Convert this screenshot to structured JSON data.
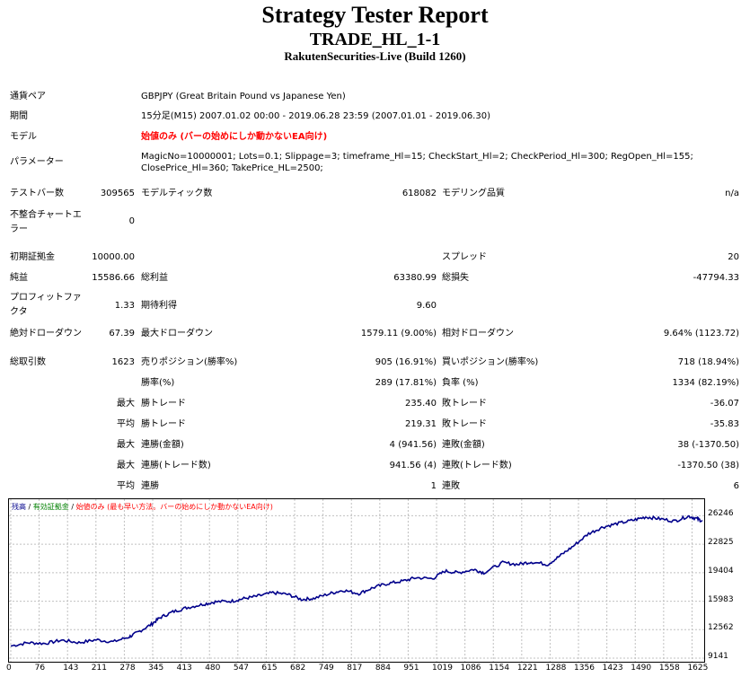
{
  "header": {
    "title": "Strategy Tester Report",
    "subtitle": "TRADE_HL_1-1",
    "build": "RakutenSecurities-Live (Build 1260)"
  },
  "info": {
    "symbol_label": "通貨ペア",
    "symbol_value": "GBPJPY (Great Britain Pound vs Japanese Yen)",
    "period_label": "期間",
    "period_value": "15分足(M15) 2007.01.02 00:00 - 2019.06.28 23:59 (2007.01.01 - 2019.06.30)",
    "model_label": "モデル",
    "model_value": "始値のみ (バーの始めにしか動かないEA向け)",
    "params_label": "パラメーター",
    "params_line1": "MagicNo=10000001; Lots=0.1; Slippage=3; timeframe_Hl=15; CheckStart_Hl=2; CheckPeriod_Hl=300; RegOpen_Hl=155;",
    "params_line2": "ClosePrice_Hl=360; TakePrice_HL=2500;"
  },
  "stats": {
    "bars_label": "テストバー数",
    "bars_value": "309565",
    "ticks_label": "モデルティック数",
    "ticks_value": "618082",
    "quality_label": "モデリング品質",
    "quality_value": "n/a",
    "mismatch_label_1": "不整合チャートエ",
    "mismatch_label_2": "ラー",
    "mismatch_value": "0",
    "deposit_label": "初期証拠金",
    "deposit_value": "10000.00",
    "spread_label": "スプレッド",
    "spread_value": "20",
    "net_label": "純益",
    "net_value": "15586.66",
    "gross_profit_label": "総利益",
    "gross_profit_value": "63380.99",
    "gross_loss_label": "総損失",
    "gross_loss_value": "-47794.33",
    "pf_label_1": "プロフィットファ",
    "pf_label_2": "クタ",
    "pf_value": "1.33",
    "expected_label": "期待利得",
    "expected_value": "9.60",
    "abs_dd_label": "絶対ドローダウン",
    "abs_dd_value": "67.39",
    "max_dd_label": "最大ドローダウン",
    "max_dd_value": "1579.11 (9.00%)",
    "rel_dd_label": "相対ドローダウン",
    "rel_dd_value": "9.64% (1123.72)",
    "total_label": "総取引数",
    "total_value": "1623",
    "short_label": "売りポジション(勝率%)",
    "short_value": "905 (16.91%)",
    "long_label": "買いポジション(勝率%)",
    "long_value": "718 (18.94%)",
    "win_label": "勝率(%)",
    "win_value": "289 (17.81%)",
    "loss_label": "負率 (%)",
    "loss_value": "1334 (82.19%)",
    "q_max": "最大",
    "q_avg": "平均",
    "max_win_label": "勝トレード",
    "max_win_value": "235.40",
    "max_loss_label": "敗トレード",
    "max_loss_value": "-36.07",
    "avg_win_label": "勝トレード",
    "avg_win_value": "219.31",
    "avg_loss_label": "敗トレード",
    "avg_loss_value": "-35.83",
    "cons_win_amt_label": "連勝(金額)",
    "cons_win_amt_value": "4 (941.56)",
    "cons_loss_amt_label": "連敗(金額)",
    "cons_loss_amt_value": "38 (-1370.50)",
    "cons_win_cnt_label": "連勝(トレード数)",
    "cons_win_cnt_value": "941.56 (4)",
    "cons_loss_cnt_label": "連敗(トレード数)",
    "cons_loss_cnt_value": "-1370.50 (38)",
    "avg_cons_win_label": "連勝",
    "avg_cons_win_value": "1",
    "avg_cons_loss_label": "連敗",
    "avg_cons_loss_value": "6"
  },
  "chart_data": {
    "type": "line",
    "legend": {
      "balance": "残高",
      "sep1": " / ",
      "equity": "有効証拠金",
      "sep2": " / ",
      "model": "始値のみ (最も早い方法。バーの始めにしか動かないEA向け)"
    },
    "colors": {
      "line": "#00008b",
      "balance": "#00008b",
      "equity": "#008000",
      "model": "#ff0000",
      "grid": "#c0c0c0"
    },
    "xlim": [
      0,
      1623
    ],
    "ylim": [
      9141,
      27800
    ],
    "x_ticks": [
      "0",
      "76",
      "143",
      "211",
      "278",
      "345",
      "413",
      "480",
      "547",
      "615",
      "682",
      "749",
      "817",
      "884",
      "951",
      "1019",
      "1086",
      "1154",
      "1221",
      "1288",
      "1356",
      "1423",
      "1490",
      "1558",
      "1625"
    ],
    "y_ticks": [
      "26246",
      "22825",
      "19404",
      "15983",
      "12562",
      "9141"
    ],
    "y_tick_values": [
      26246,
      22825,
      19404,
      15983,
      12562,
      9141
    ],
    "series": [
      {
        "values": [
          [
            0,
            10600
          ],
          [
            40,
            11000
          ],
          [
            80,
            10900
          ],
          [
            120,
            11300
          ],
          [
            160,
            11000
          ],
          [
            200,
            11350
          ],
          [
            240,
            11100
          ],
          [
            278,
            11700
          ],
          [
            300,
            12300
          ],
          [
            330,
            13200
          ],
          [
            350,
            14000
          ],
          [
            380,
            14700
          ],
          [
            413,
            15200
          ],
          [
            450,
            15600
          ],
          [
            480,
            15900
          ],
          [
            520,
            16000
          ],
          [
            547,
            16300
          ],
          [
            580,
            16600
          ],
          [
            615,
            17000
          ],
          [
            650,
            16800
          ],
          [
            682,
            16200
          ],
          [
            710,
            16300
          ],
          [
            749,
            16900
          ],
          [
            780,
            17300
          ],
          [
            817,
            16900
          ],
          [
            850,
            17600
          ],
          [
            884,
            18100
          ],
          [
            920,
            18400
          ],
          [
            951,
            18800
          ],
          [
            990,
            18700
          ],
          [
            1019,
            19600
          ],
          [
            1050,
            19400
          ],
          [
            1086,
            19800
          ],
          [
            1110,
            19400
          ],
          [
            1154,
            20600
          ],
          [
            1190,
            20400
          ],
          [
            1221,
            20700
          ],
          [
            1260,
            20400
          ],
          [
            1288,
            21400
          ],
          [
            1320,
            22600
          ],
          [
            1356,
            24100
          ],
          [
            1390,
            24900
          ],
          [
            1423,
            25300
          ],
          [
            1460,
            25700
          ],
          [
            1490,
            26100
          ],
          [
            1520,
            25900
          ],
          [
            1558,
            25600
          ],
          [
            1590,
            26200
          ],
          [
            1610,
            25900
          ],
          [
            1623,
            25600
          ]
        ]
      }
    ]
  }
}
